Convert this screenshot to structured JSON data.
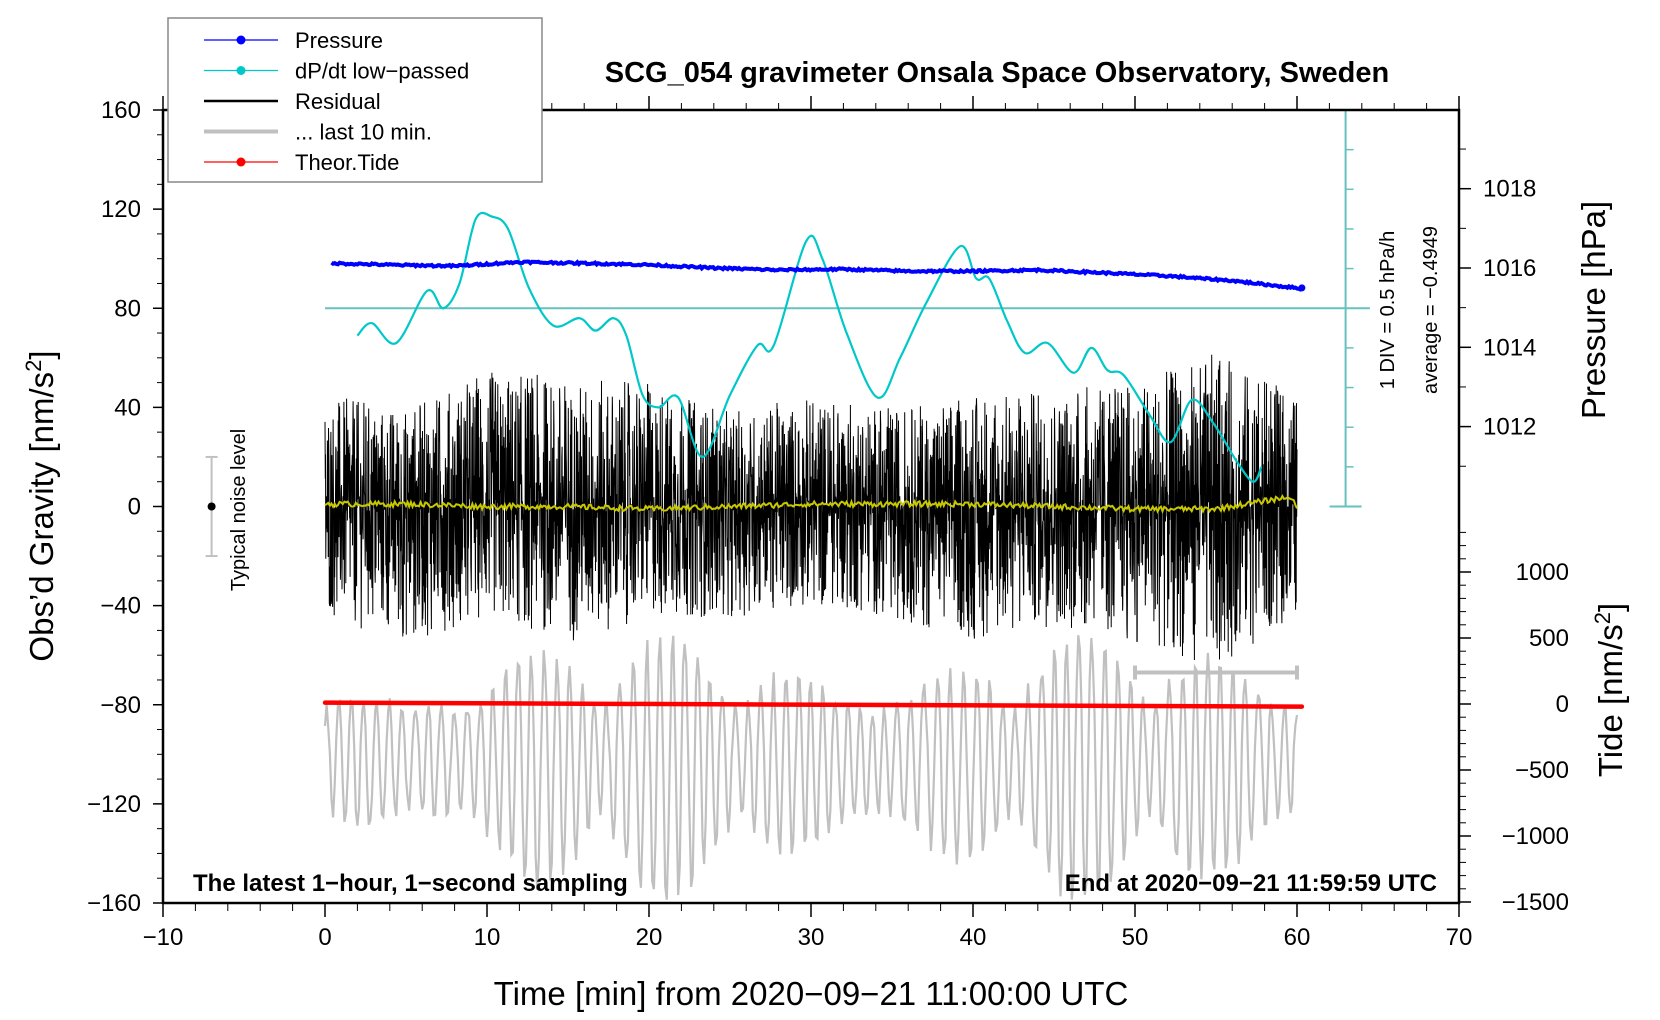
{
  "chart_data": {
    "type": "line",
    "title": "SCG_054 gravimeter Onsala Space Observatory, Sweden",
    "xlabel": "Time [min] from 2020−09−21 11:00:00 UTC",
    "ylabel_left": "Obs’d Gravity [nm/s²]",
    "ylabel_right_pressure": "Pressure [hPa]",
    "ylabel_right_tide": "Tide [nm/s²]",
    "xlim": [
      -10,
      70
    ],
    "ylim": [
      -160,
      160
    ],
    "x_ticks": [
      -10,
      0,
      10,
      20,
      30,
      40,
      50,
      60,
      70
    ],
    "x_tick_labels": [
      "−10",
      "0",
      "10",
      "20",
      "30",
      "40",
      "50",
      "60",
      "70"
    ],
    "y_ticks": [
      160,
      120,
      80,
      40,
      0,
      -40,
      -80,
      -120,
      -160
    ],
    "y_tick_labels": [
      "160",
      "120",
      "80",
      "40",
      "0",
      "−40",
      "−80",
      "−120",
      "−160"
    ],
    "pressure_axis": {
      "ticks": [
        1018,
        1016,
        1014,
        1012
      ],
      "tick_labels": [
        "1018",
        "1016",
        "1014",
        "1012"
      ],
      "range_shown": [
        1011.5,
        1019.3
      ]
    },
    "tide_axis": {
      "ticks": [
        1000,
        500,
        0,
        -500,
        -1000,
        -1500
      ],
      "tick_labels": [
        "1000",
        "500",
        "0",
        "−500",
        "−1000",
        "−1500"
      ],
      "range_shown": [
        -1500,
        1000
      ]
    },
    "dpdt_scale": {
      "label_div": "1 DIV = 0.5 hPa/h",
      "label_avg": "average = −0.4949",
      "div_hpa_per_h": 0.5,
      "average_hpa_per_h": -0.4949,
      "reference_gravity_level": 80,
      "gravity_units_per_div": 16
    },
    "legend": {
      "position": "top-left",
      "entries": [
        {
          "label": "Pressure",
          "color": "#0000ff",
          "marker": true
        },
        {
          "label": "dP/dt low−passed",
          "color": "#00c8c8",
          "marker": true
        },
        {
          "label": "Residual",
          "color": "#000000",
          "marker": false
        },
        {
          "label": "... last 10 min.",
          "color": "#c0c0c0",
          "marker": false
        },
        {
          "label": "Theor.Tide",
          "color": "#ff0000",
          "marker": true
        }
      ]
    },
    "annotations": {
      "noise_label": "Typical noise level",
      "noise_level": 20,
      "noise_x_min": -7,
      "note_left": "The latest 1−hour, 1−second sampling",
      "note_right": "End at 2020−09−21 11:59:59 UTC",
      "last10_bracket_min": [
        50,
        60
      ],
      "last10_bracket_gravity": -67
    },
    "series": [
      {
        "name": "Pressure",
        "unit": "hPa",
        "color": "#0000ff",
        "x": [
          0.4,
          4,
          8,
          12,
          16,
          20,
          24,
          28,
          32,
          36,
          40,
          44,
          48,
          52,
          56,
          60.3
        ],
        "values": [
          1016.12,
          1016.08,
          1016.05,
          1016.15,
          1016.12,
          1016.08,
          1016.0,
          1015.95,
          1015.97,
          1015.92,
          1015.92,
          1015.95,
          1015.88,
          1015.8,
          1015.68,
          1015.48
        ]
      },
      {
        "name": "dP/dt low-passed",
        "unit": "hPa/h",
        "color": "#00c8c8",
        "x": [
          2.0,
          2.9,
          4.4,
          6.3,
          7.3,
          8.3,
          9.3,
          10.3,
          11.3,
          12.6,
          14.1,
          15.7,
          16.7,
          17.8,
          18.6,
          19.6,
          20.6,
          21.8,
          23.3,
          25.0,
          26.7,
          27.7,
          29.7,
          30.7,
          32.2,
          34.1,
          35.5,
          37.1,
          39.2,
          40.2,
          41.0,
          42.1,
          43.2,
          44.6,
          46.2,
          47.3,
          48.3,
          49.3,
          50.9,
          52.2,
          53.5,
          54.8,
          56.3,
          57.3,
          57.8
        ],
        "values": [
          -0.839,
          -0.683,
          -0.933,
          -0.277,
          -0.495,
          -0.183,
          0.63,
          0.661,
          0.505,
          -0.245,
          -0.714,
          -0.62,
          -0.777,
          -0.62,
          -0.839,
          -1.588,
          -1.745,
          -1.62,
          -2.37,
          -1.589,
          -0.964,
          -0.964,
          0.349,
          0.13,
          -0.808,
          -1.62,
          -1.12,
          -0.433,
          0.286,
          -0.12,
          -0.12,
          -0.652,
          -1.058,
          -0.933,
          -1.308,
          -0.995,
          -1.277,
          -1.339,
          -1.839,
          -2.183,
          -1.652,
          -1.933,
          -2.433,
          -2.683,
          -2.495
        ]
      },
      {
        "name": "Residual",
        "unit": "nm/s²",
        "color": "#000000",
        "sampling": "1 s",
        "envelope_x": [
          0,
          5,
          10,
          15,
          20,
          25,
          30,
          35,
          40,
          45,
          50,
          55,
          60
        ],
        "envelope_max": [
          45,
          40,
          55,
          52,
          50,
          38,
          45,
          40,
          45,
          48,
          50,
          62,
          45
        ],
        "envelope_min": [
          -45,
          -55,
          -45,
          -55,
          -45,
          -45,
          -40,
          -45,
          -55,
          -48,
          -55,
          -65,
          -45
        ]
      },
      {
        "name": "Residual smoothed",
        "unit": "nm/s²",
        "color": "#c8c800",
        "x": [
          0,
          5,
          10,
          15,
          20,
          25,
          30,
          35,
          40,
          45,
          50,
          55,
          59.6,
          60
        ],
        "values": [
          1,
          1,
          0,
          0,
          -1,
          0,
          1,
          1,
          1,
          0,
          -1,
          -1,
          4,
          -1
        ]
      },
      {
        "name": "... last 10 min.",
        "unit": "nm/s²",
        "color": "#c0c0c0",
        "offset_gravity": -100,
        "time_stretch": 6,
        "amplitude_max": 48,
        "amplitude_min": -62
      },
      {
        "name": "Theor.Tide",
        "unit": "nm/s²",
        "color": "#ff0000",
        "x": [
          0,
          60.3
        ],
        "values": [
          10,
          -20
        ]
      }
    ]
  }
}
